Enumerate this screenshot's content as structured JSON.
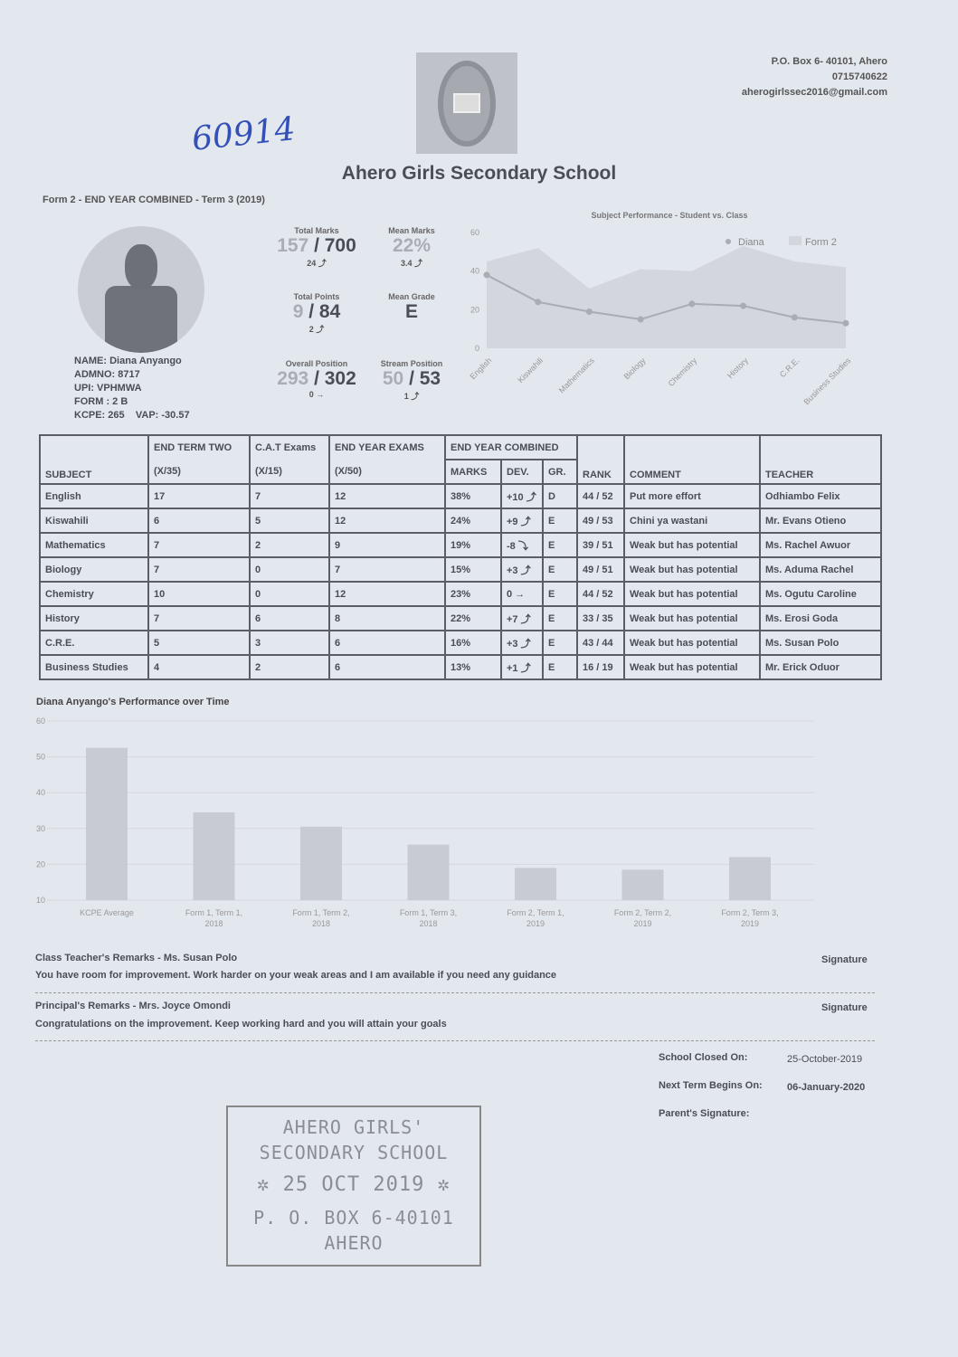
{
  "school": {
    "name": "Ahero Girls Secondary School",
    "address": "P.O. Box 6- 40101, Ahero",
    "phone": "0715740622",
    "email": "aherogirlssec2016@gmail.com",
    "logo_icon": "school-crest-icon"
  },
  "handwritten_note": "60914",
  "report_title": "Form 2 - END YEAR COMBINED - Term 3 (2019)",
  "student": {
    "name": "NAME: Diana Anyango",
    "admno": "ADMNO: 8717",
    "upi": "UPI: VPHMWA",
    "form": "FORM : 2 B",
    "kcpe": "KCPE: 265",
    "vap": "VAP: -30.57"
  },
  "stats": [
    {
      "label": "Total Marks",
      "value": "157",
      "total": " / 700",
      "delta": "24 ⤴"
    },
    {
      "label": "Mean Marks",
      "value": "22%",
      "total": "",
      "delta": "3.4 ⤴"
    },
    {
      "label": "Total Points",
      "value": "9",
      "total": " / 84",
      "delta": "2 ⤴"
    },
    {
      "label": "Mean Grade",
      "value": "",
      "total": "E",
      "delta": ""
    },
    {
      "label": "Overall Position",
      "value": "293",
      "total": " / 302",
      "delta": "0 →"
    },
    {
      "label": "Stream Position",
      "value": "50",
      "total": " / 53",
      "delta": "1 ⤴"
    }
  ],
  "chart_data": [
    {
      "type": "line",
      "title": "Subject Performance - Student vs. Class",
      "title_icon": "bar-chart-icon",
      "categories": [
        "English",
        "Kiswahili",
        "Mathematics",
        "Biology",
        "Chemistry",
        "History",
        "C.R.E.",
        "Business Studies"
      ],
      "ylim": [
        0,
        60
      ],
      "yticks": [
        "0",
        "20",
        "40",
        "60"
      ],
      "legend": "top-right",
      "series": [
        {
          "name": "Diana",
          "type": "line",
          "values": [
            38,
            24,
            19,
            15,
            23,
            22,
            16,
            13
          ],
          "color": "#a9acb3"
        },
        {
          "name": "Form 2",
          "type": "area",
          "values": [
            45,
            52,
            31,
            41,
            40,
            53,
            45,
            42
          ],
          "color": "#d3d6dc"
        }
      ]
    },
    {
      "type": "bar",
      "title": "Diana Anyango's Performance over Time",
      "categories": [
        "KCPE Average",
        "Form 1, Term 1, 2018",
        "Form 1, Term 2, 2018",
        "Form 1, Term 3, 2018",
        "Form 2, Term 1, 2019",
        "Form 2, Term 2, 2019",
        "Form 2, Term 3, 2019"
      ],
      "values": [
        52.5,
        34.5,
        30.5,
        25.5,
        19,
        18.5,
        22
      ],
      "ylim": [
        10,
        60
      ],
      "yticks": [
        "10",
        "20",
        "30",
        "40",
        "50",
        "60"
      ],
      "color": "#c8cbd1",
      "grid": true
    }
  ],
  "table": {
    "headers": {
      "subject": "SUBJECT",
      "ett": "END TERM TWO",
      "ett_sub": "(X/35)",
      "cat": "C.A.T Exams",
      "cat_sub": "(X/15)",
      "eye": "END YEAR EXAMS",
      "eye_sub": "(X/50)",
      "eyc": "END YEAR COMBINED",
      "marks": "MARKS",
      "dev": "DEV.",
      "gr": "GR.",
      "rank": "RANK",
      "comment": "COMMENT",
      "teacher": "TEACHER"
    },
    "rows": [
      [
        "English",
        "17",
        "7",
        "12",
        "38%",
        "+10 ⤴",
        "D",
        "44 / 52",
        "Put more effort",
        "Odhiambo Felix"
      ],
      [
        "Kiswahili",
        "6",
        "5",
        "12",
        "24%",
        "+9 ⤴",
        "E",
        "49 / 53",
        "Chini ya wastani",
        "Mr. Evans Otieno"
      ],
      [
        "Mathematics",
        "7",
        "2",
        "9",
        "19%",
        "-8 ⤵",
        "E",
        "39 / 51",
        "Weak but has potential",
        "Ms. Rachel Awuor"
      ],
      [
        "Biology",
        "7",
        "0",
        "7",
        "15%",
        "+3 ⤴",
        "E",
        "49 / 51",
        "Weak but has potential",
        "Ms. Aduma Rachel"
      ],
      [
        "Chemistry",
        "10",
        "0",
        "12",
        "23%",
        "0 →",
        "E",
        "44 / 52",
        "Weak but has potential",
        "Ms. Ogutu Caroline"
      ],
      [
        "History",
        "7",
        "6",
        "8",
        "22%",
        "+7 ⤴",
        "E",
        "33 / 35",
        "Weak but has potential",
        "Ms. Erosi Goda"
      ],
      [
        "C.R.E.",
        "5",
        "3",
        "6",
        "16%",
        "+3 ⤴",
        "E",
        "43 / 44",
        "Weak but has potential",
        "Ms. Susan Polo"
      ],
      [
        "Business Studies",
        "4",
        "2",
        "6",
        "13%",
        "+1 ⤴",
        "E",
        "16 / 19",
        "Weak but has potential",
        "Mr. Erick Oduor"
      ]
    ]
  },
  "remarks": {
    "class_teacher_label": "Class Teacher's Remarks - Ms. Susan Polo",
    "class_teacher_text": "You have room for improvement. Work harder on your weak areas and I am available if you need any guidance",
    "principal_label": "Principal's Remarks - Mrs. Joyce Omondi",
    "principal_text": "Congratulations on the improvement. Keep working hard and you will attain your goals",
    "signature": "Signature"
  },
  "dates": {
    "closed_label": "School Closed On:",
    "closed": "25-October-2019",
    "next_label": "Next Term Begins On:",
    "next": "06-January-2020",
    "parent_label": "Parent's Signature:"
  },
  "stamp": {
    "line1": "AHERO GIRLS'",
    "line2": "SECONDARY SCHOOL",
    "date": "25 OCT 2019",
    "box": "P. O. BOX 6-40101",
    "town": "AHERO"
  }
}
